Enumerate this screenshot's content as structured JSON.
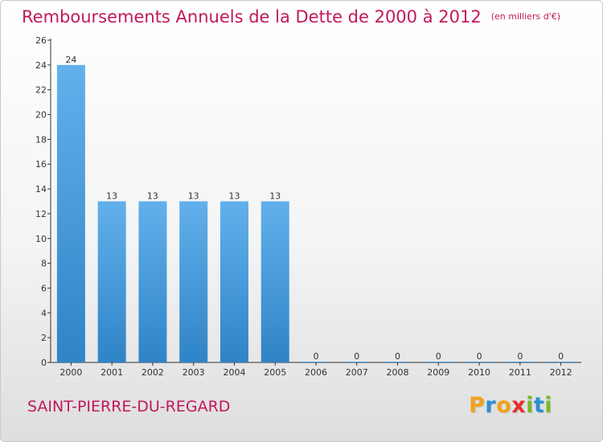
{
  "title": "Remboursements Annuels de la Dette de 2000 à 2012",
  "unit": "(en milliers d'€)",
  "commune": "SAINT-PIERRE-DU-REGARD",
  "logo": {
    "letters": [
      "P",
      "r",
      "o",
      "x",
      "i",
      "t",
      "i"
    ],
    "colors": [
      "#f2a21b",
      "#2e8fd6",
      "#f2a21b",
      "#e5302e",
      "#7ab828",
      "#2e8fd6",
      "#7ab828"
    ]
  },
  "colors": {
    "bar": "#3f97d8",
    "bar_light": "#62b0ec",
    "accent": "#c2185b"
  },
  "chart_data": {
    "type": "bar",
    "categories": [
      "2000",
      "2001",
      "2002",
      "2003",
      "2004",
      "2005",
      "2006",
      "2007",
      "2008",
      "2009",
      "2010",
      "2011",
      "2012"
    ],
    "values": [
      24,
      13,
      13,
      13,
      13,
      13,
      0,
      0,
      0,
      0,
      0,
      0,
      0
    ],
    "ylim": [
      0,
      26
    ],
    "yticks": [
      0,
      2,
      4,
      6,
      8,
      10,
      12,
      14,
      16,
      18,
      20,
      22,
      24,
      26
    ],
    "grid": false,
    "data_labels": true
  }
}
